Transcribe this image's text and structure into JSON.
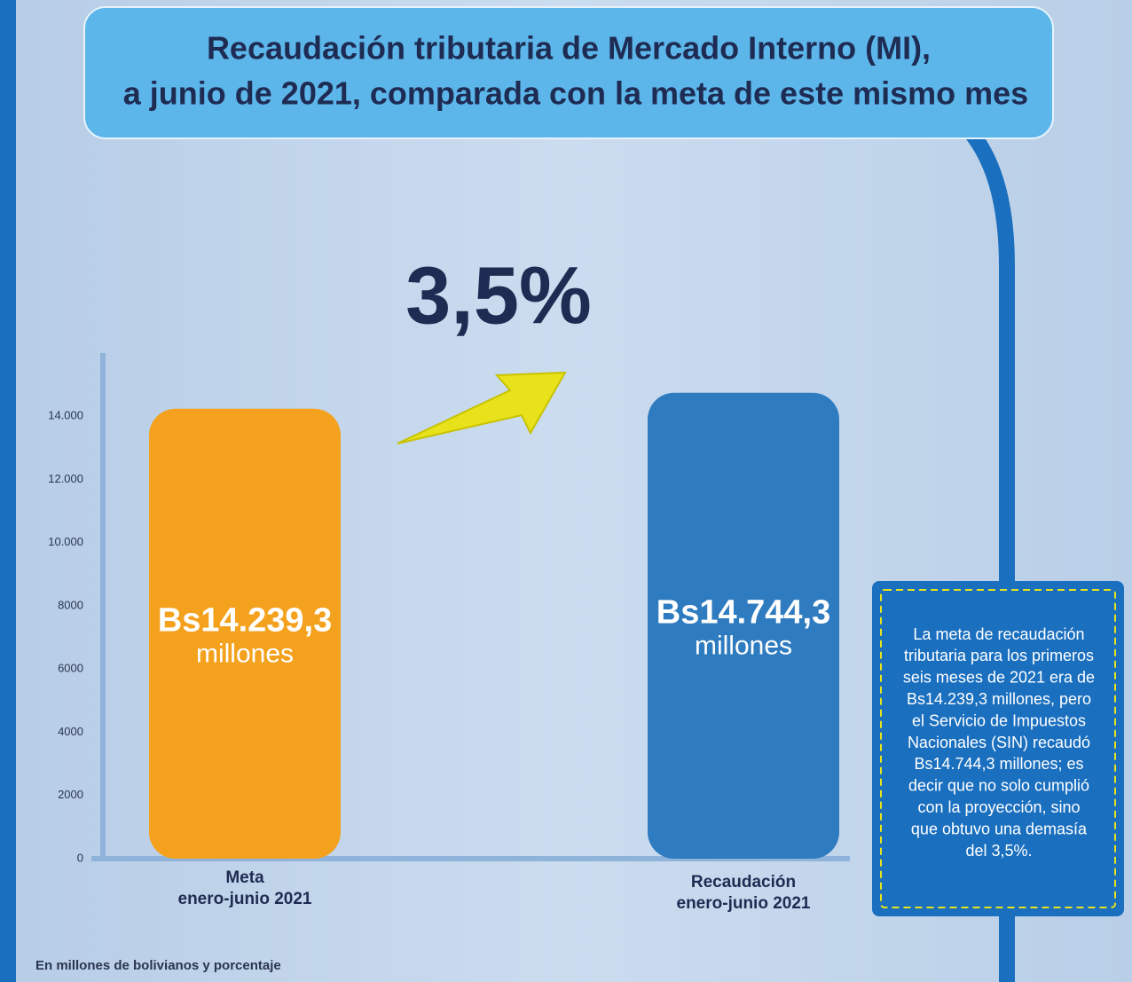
{
  "chart_data": {
    "type": "bar",
    "title": [
      "Recaudación tributaria de Mercado Interno (MI),",
      "a junio de 2021, comparada con la meta de este mismo mes"
    ],
    "categories": [
      [
        "Meta",
        "enero-junio 2021"
      ],
      [
        "Recaudación",
        "enero-junio 2021"
      ]
    ],
    "values": [
      14239.3,
      14744.3
    ],
    "value_labels": [
      [
        "Bs14.239,3",
        "millones"
      ],
      [
        "Bs14.744,3",
        "millones"
      ]
    ],
    "colors": [
      "#f4a11d",
      "#2e7bc0"
    ],
    "ylim": [
      0,
      16000
    ],
    "yticks": [
      0,
      2000,
      4000,
      6000,
      8000,
      {
        "value": 10000,
        "label": "10.000"
      },
      {
        "value": 12000,
        "label": "12.000"
      },
      {
        "value": 14000,
        "label": "14.000"
      }
    ],
    "annotation": "3,5%",
    "note": [
      "La meta de recaudación",
      "tributaria para los primeros",
      "seis meses de 2021 era de",
      "Bs14.239,3 millones, pero",
      "el Servicio de Impuestos",
      "Nacionales (SIN) recaudó",
      "Bs14.744,3 millones; es",
      "decir que no solo cumplió",
      "con la proyección, sino",
      "que obtuvo una demasía",
      "del 3,5%."
    ],
    "footnote": "En millones de bolivianos y porcentaje"
  }
}
